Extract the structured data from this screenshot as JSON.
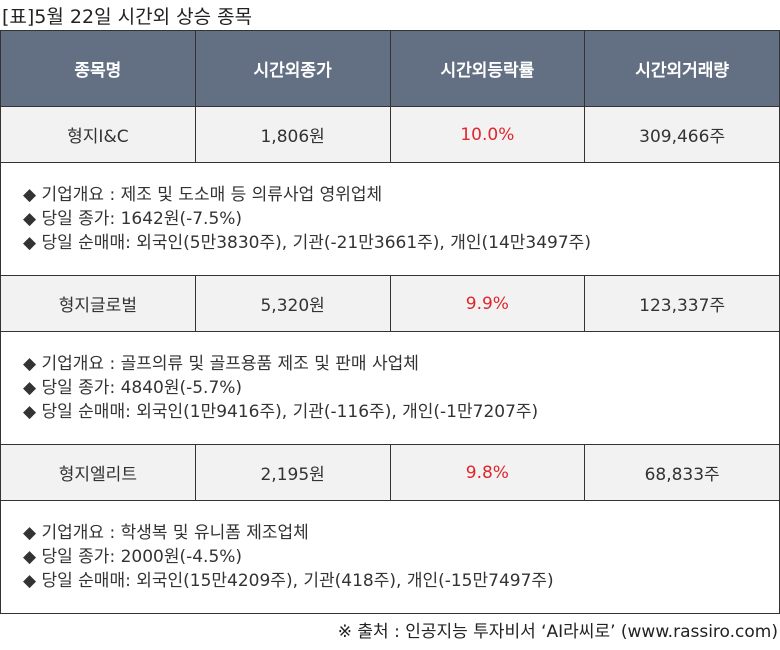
{
  "title": "[표]5월 22일 시간외 상승 종목",
  "colors": {
    "header_bg": "#637083",
    "rate_color": "#e0262b"
  },
  "headers": [
    "종목명",
    "시간외종가",
    "시간외등락률",
    "시간외거래량"
  ],
  "rows": [
    {
      "name": "형지I&C",
      "price": "1,806원",
      "rate": "10.0%",
      "volume": "309,466주",
      "details": [
        "◆ 기업개요 : 제조 및 도소매 등 의류사업 영위업체",
        "◆ 당일 종가: 1642원(-7.5%)",
        "◆ 당일 순매매: 외국인(5만3830주), 기관(-21만3661주), 개인(14만3497주)"
      ]
    },
    {
      "name": "형지글로벌",
      "price": "5,320원",
      "rate": "9.9%",
      "volume": "123,337주",
      "details": [
        "◆ 기업개요 : 골프의류 및 골프용품 제조 및 판매 사업체",
        "◆ 당일 종가: 4840원(-5.7%)",
        "◆ 당일 순매매: 외국인(1만9416주), 기관(-116주), 개인(-1만7207주)"
      ]
    },
    {
      "name": "형지엘리트",
      "price": "2,195원",
      "rate": "9.8%",
      "volume": "68,833주",
      "details": [
        "◆ 기업개요 : 학생복 및 유니폼 제조업체",
        "◆ 당일 종가: 2000원(-4.5%)",
        "◆ 당일 순매매: 외국인(15만4209주), 기관(418주), 개인(-15만7497주)"
      ]
    }
  ],
  "source": "※ 출처 : 인공지능 투자비서 ‘AI라씨로’ (www.rassiro.com)"
}
